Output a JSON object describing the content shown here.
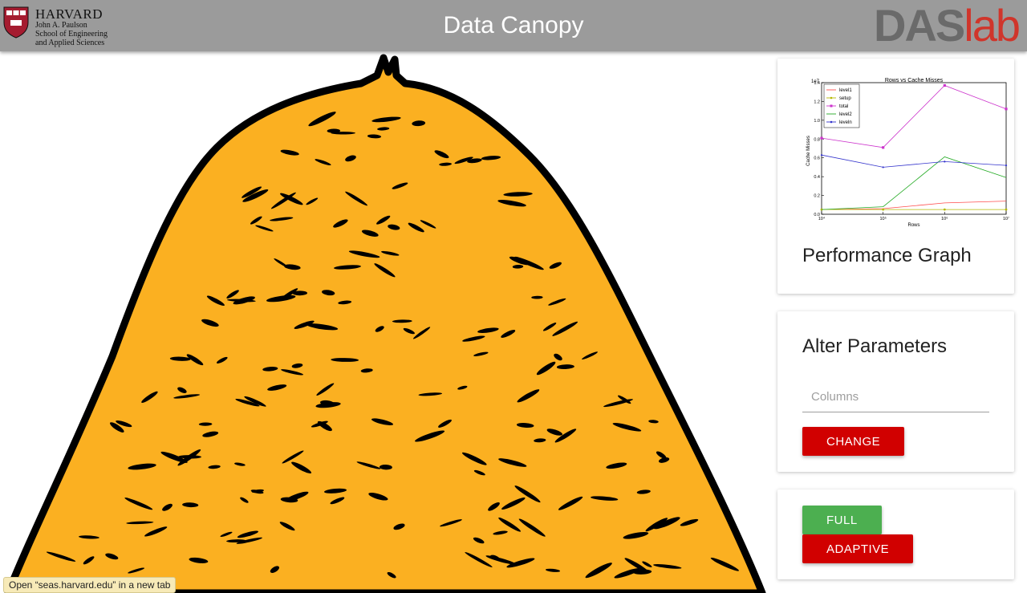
{
  "header": {
    "harvard_name": "HARVARD",
    "harvard_sub": "John A. Paulson\nSchool of Engineering\nand Applied Sciences",
    "title": "Data Canopy",
    "daslab_das": "DAS",
    "daslab_lab": "lab"
  },
  "performance": {
    "card_title": "Performance Graph"
  },
  "chart_data": {
    "type": "line",
    "title": "Rows vs Cache Misses",
    "xlabel": "Rows",
    "ylabel": "Cache Misses",
    "y_scale_label": "1e7",
    "x_scale": "log",
    "x": [
      10000,
      100000,
      1000000,
      10000000
    ],
    "x_tick_labels": [
      "10⁴",
      "10⁵",
      "10⁶",
      "10⁷"
    ],
    "ylim": [
      0,
      1.4
    ],
    "y_ticks": [
      "0.0",
      "0.2",
      "0.4",
      "0.6",
      "0.8",
      "1.0",
      "1.2",
      "1.4"
    ],
    "legend_position": "top-left",
    "series": [
      {
        "name": "level1",
        "color": "#ff4d4d",
        "marker": "none",
        "values": [
          0.05,
          0.06,
          0.12,
          0.14
        ]
      },
      {
        "name": "setup",
        "color": "#b5b800",
        "marker": "circle",
        "values": [
          0.05,
          0.05,
          0.05,
          0.05
        ]
      },
      {
        "name": "total",
        "color": "#cc33cc",
        "marker": "square",
        "values": [
          0.81,
          0.71,
          1.37,
          1.12
        ]
      },
      {
        "name": "level2",
        "color": "#22aa22",
        "marker": "none",
        "values": [
          0.05,
          0.08,
          0.61,
          0.39
        ]
      },
      {
        "name": "leveln",
        "color": "#3333cc",
        "marker": "dot",
        "values": [
          0.63,
          0.5,
          0.56,
          0.52
        ]
      }
    ]
  },
  "params": {
    "card_title": "Alter Parameters",
    "columns_placeholder": "Columns",
    "change_label": "CHANGE"
  },
  "modes": {
    "full_label": "FULL",
    "adaptive_label": "ADAPTIVE"
  },
  "status_bar": {
    "text": "Open “seas.harvard.edu” in a new tab"
  },
  "colors": {
    "header_bg": "#9b9b9b",
    "hay": "#fbb021",
    "button_red": "#d10000",
    "button_green": "#4caf50"
  }
}
